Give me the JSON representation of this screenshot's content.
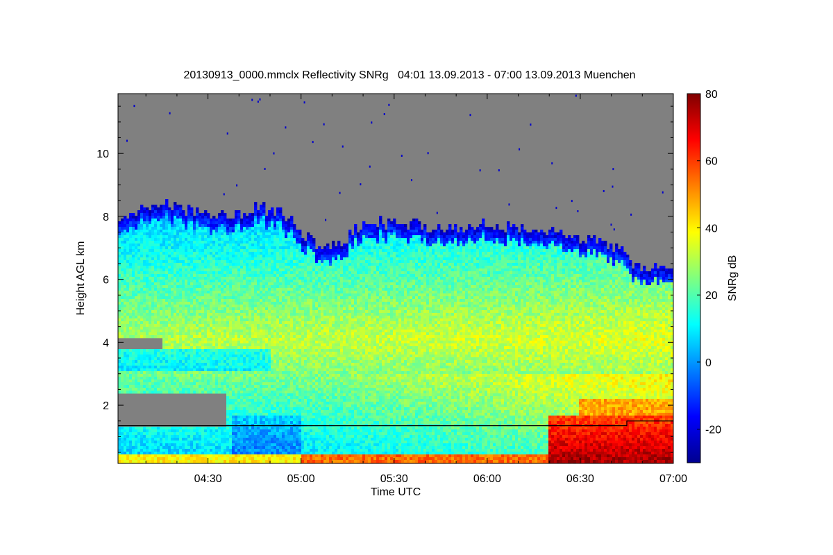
{
  "chart_data": {
    "type": "heatmap",
    "title": "20130913_0000.mmclx Reflectivity SNRg   04:01 13.09.2013 - 07:00 13.09.2013 Muenchen",
    "xlabel": "Time UTC",
    "ylabel": "Height AGL km",
    "x_ticks": [
      "04:30",
      "05:00",
      "05:30",
      "06:00",
      "06:30",
      "07:00"
    ],
    "x_tick_minutes": [
      30,
      60,
      90,
      120,
      150,
      180
    ],
    "xlim_minutes": [
      1,
      180
    ],
    "y_ticks": [
      2,
      4,
      6,
      8,
      10
    ],
    "ylim": [
      0.15,
      11.9
    ],
    "colorbar": {
      "label": "SNRg dB",
      "ticks": [
        -20,
        0,
        20,
        40,
        60,
        80
      ],
      "range": [
        -30,
        80
      ],
      "colormap": "jet"
    },
    "background_color": "#808080",
    "echo_top_km": [
      [
        1,
        7.8
      ],
      [
        8,
        8.2
      ],
      [
        15,
        8.4
      ],
      [
        22,
        8.2
      ],
      [
        30,
        8.1
      ],
      [
        38,
        8.0
      ],
      [
        45,
        8.3
      ],
      [
        52,
        8.2
      ],
      [
        58,
        7.8
      ],
      [
        62,
        7.3
      ],
      [
        66,
        7.0
      ],
      [
        70,
        7.1
      ],
      [
        76,
        7.4
      ],
      [
        80,
        7.8
      ],
      [
        85,
        7.8
      ],
      [
        90,
        7.8
      ],
      [
        97,
        7.7
      ],
      [
        105,
        7.6
      ],
      [
        112,
        7.7
      ],
      [
        120,
        7.8
      ],
      [
        128,
        7.6
      ],
      [
        135,
        7.5
      ],
      [
        142,
        7.6
      ],
      [
        150,
        7.3
      ],
      [
        156,
        7.2
      ],
      [
        162,
        7.0
      ],
      [
        166,
        6.6
      ],
      [
        170,
        6.4
      ],
      [
        175,
        6.3
      ],
      [
        180,
        6.2
      ]
    ],
    "cloud_base_line_km": [
      [
        1,
        1.35
      ],
      [
        165,
        1.35
      ],
      [
        165,
        1.5
      ],
      [
        180,
        1.5
      ]
    ],
    "grid": false
  }
}
